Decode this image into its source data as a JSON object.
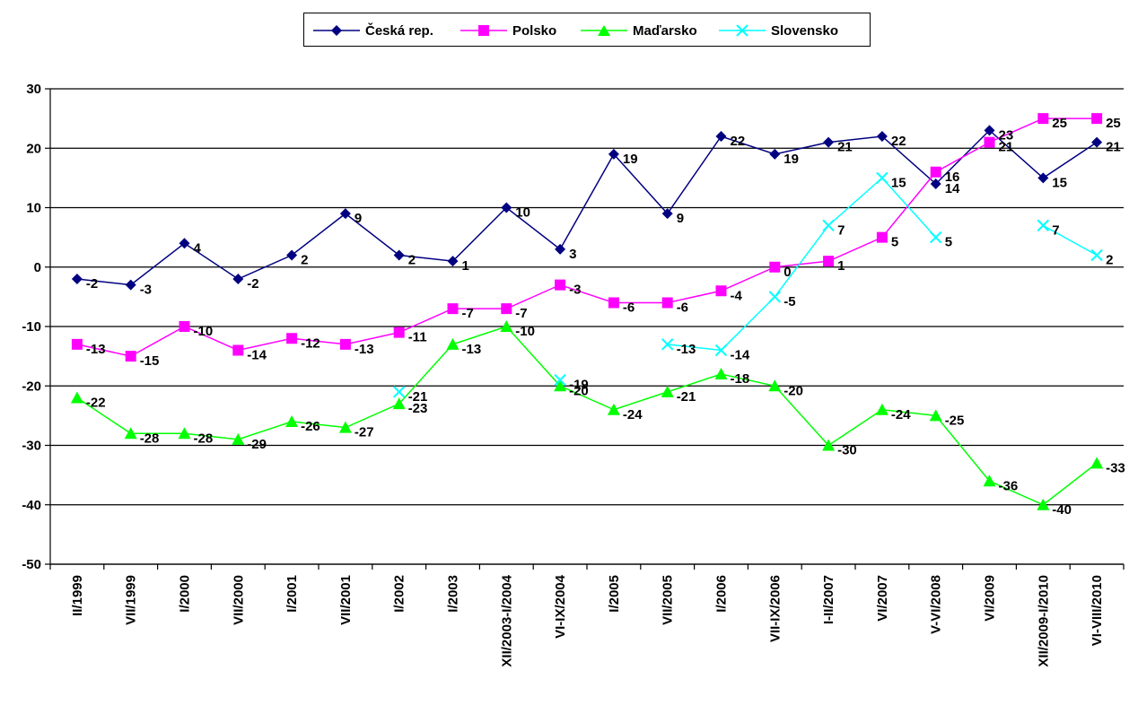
{
  "chart_data": {
    "type": "line",
    "categories": [
      "II/1999",
      "VII/1999",
      "I/2000",
      "VII/2000",
      "I/2001",
      "VII/2001",
      "I/2002",
      "I/2003",
      "XII/2003-I/2004",
      "VI-IX/2004",
      "I/2005",
      "VII/2005",
      "I/2006",
      "VII-IX/2006",
      "I-II/2007",
      "VI/2007",
      "V-VI/2008",
      "VI/2009",
      "XII/2009-I/2010",
      "VI-VIII/2010"
    ],
    "ylim": [
      -50,
      30
    ],
    "yticks": [
      30,
      20,
      10,
      0,
      -10,
      -20,
      -30,
      -40,
      -50
    ],
    "grid": true,
    "legend_position": "top",
    "series": [
      {
        "name": "Česká rep.",
        "color": "#000080",
        "marker": "diamond",
        "values": [
          -2,
          -3,
          4,
          -2,
          2,
          9,
          2,
          1,
          10,
          3,
          19,
          9,
          22,
          19,
          21,
          22,
          14,
          23,
          15,
          21
        ],
        "labels": [
          "-2",
          "-3",
          "4",
          "-2",
          "2",
          "9",
          "2",
          "1",
          "10",
          "3",
          "19",
          "9",
          "22",
          "19",
          "21",
          "22",
          "14",
          "23",
          "15",
          "21"
        ]
      },
      {
        "name": "Polsko",
        "color": "#ff00ff",
        "marker": "square",
        "values": [
          -13,
          -15,
          -10,
          -14,
          -12,
          -13,
          -11,
          -7,
          -7,
          -3,
          -6,
          -6,
          -4,
          0,
          1,
          5,
          16,
          21,
          25,
          25
        ],
        "labels": [
          "-13",
          "-15",
          "-10",
          "-14",
          "-12",
          "-13",
          "-11",
          "-7",
          "-7",
          "-3",
          "-6",
          "-6",
          "-4",
          "0",
          "1",
          "5",
          "16",
          "21",
          "25",
          "25"
        ]
      },
      {
        "name": "Maďarsko",
        "color": "#00ff00",
        "marker": "triangle",
        "values": [
          -22,
          -28,
          -28,
          -29,
          -26,
          -27,
          -23,
          -13,
          -10,
          -20,
          -24,
          -21,
          -18,
          -20,
          -30,
          -24,
          -25,
          -36,
          -40,
          -33
        ],
        "labels": [
          "-22",
          "-28",
          "-28",
          "-29",
          "-26",
          "-27",
          "-23",
          "-13",
          "-10",
          "-20",
          "-24",
          "-21",
          "-18",
          "-20",
          "-30",
          "-24",
          "-25",
          "-36",
          "-40",
          "-33"
        ]
      },
      {
        "name": "Slovensko",
        "color": "#00ffff",
        "marker": "x",
        "values": [
          null,
          null,
          null,
          null,
          null,
          null,
          -21,
          null,
          null,
          -19,
          null,
          -13,
          -14,
          -5,
          7,
          15,
          5,
          null,
          7,
          2
        ],
        "labels": [
          "",
          "",
          "",
          "",
          "",
          "",
          "-21",
          "",
          "",
          "-19",
          "",
          "-13",
          "-14",
          "-5",
          "7",
          "15",
          "5",
          "",
          "7",
          "2"
        ]
      }
    ]
  }
}
